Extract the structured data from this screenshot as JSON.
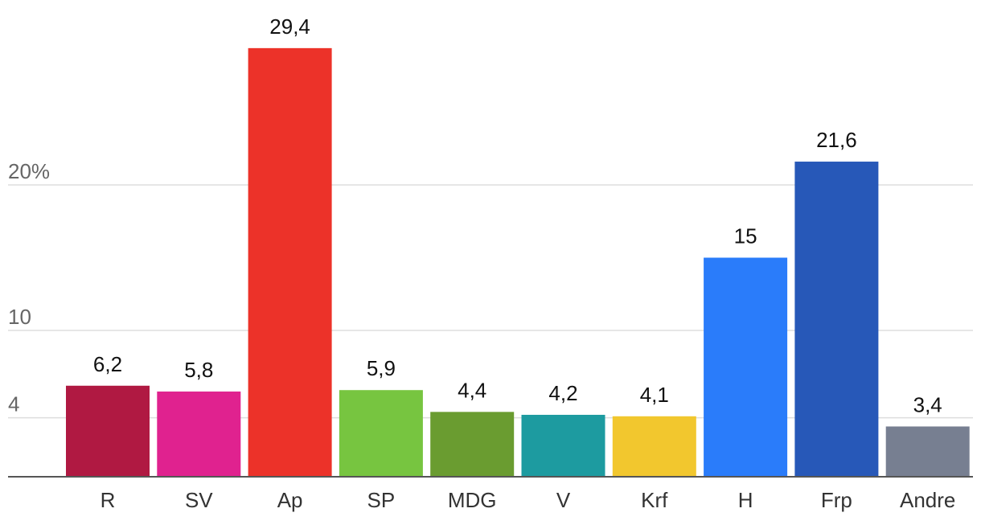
{
  "chart_data": {
    "type": "bar",
    "title": "",
    "xlabel": "",
    "ylabel": "",
    "categories": [
      "R",
      "SV",
      "Ap",
      "SP",
      "MDG",
      "V",
      "Krf",
      "H",
      "Frp",
      "Andre"
    ],
    "values": [
      6.2,
      5.8,
      29.4,
      5.9,
      4.4,
      4.2,
      4.1,
      15,
      21.6,
      3.4
    ],
    "value_labels": [
      "6,2",
      "5,8",
      "29,4",
      "5,9",
      "4,4",
      "4,2",
      "4,1",
      "15",
      "21,6",
      "3,4"
    ],
    "colors": [
      "#b01942",
      "#e0228f",
      "#ec3229",
      "#77c540",
      "#6a9c30",
      "#1d9ba0",
      "#f2c72e",
      "#2a7cfa",
      "#2758b8",
      "#777f91"
    ],
    "yticks": [
      4,
      10,
      20
    ],
    "ytick_labels": [
      "4",
      "10",
      "20%"
    ],
    "ylim": [
      0,
      29.4
    ],
    "grid": true,
    "legend": "none"
  }
}
